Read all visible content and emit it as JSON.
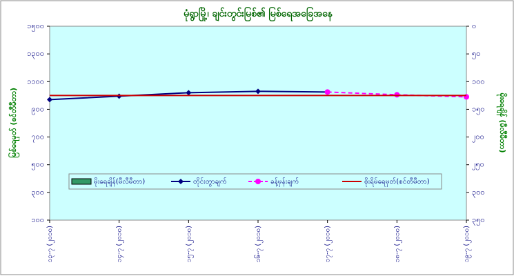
{
  "chart_data": {
    "type": "line",
    "title": "မုံရွာမြို့၊ ချင်းတွင်းမြစ်၏ မြစ်ရေအခြေအနေ",
    "y_label": "မြစ်ရေမှတ် (စင်တီမီတာ)",
    "y2_label": "မိုးရေချိန် (မီလီမီတာ)",
    "categories": [
      "၁၃-၇ (၂၀၁၀)",
      "၁၄-၇ (၂၀၁၀)",
      "၁၅-၇ (၂၀၁၀)",
      "၁၆-၇ (၂၀၁၀)",
      "၁၇-၇ (၂၀၁၀)",
      "၁၈-၇ (၂၀၁၀)",
      "၁၉-၇ (၂၀၁၀)"
    ],
    "series": [
      {
        "name": "မိုးရေချိန်(မီလီမီတာ)",
        "color": "#339966",
        "axis": "y2",
        "kind": "bar",
        "values": [
          null,
          null,
          null,
          null,
          null,
          null,
          null
        ]
      },
      {
        "name": "တိုင်းတွာချက်",
        "color": "#000080",
        "kind": "line",
        "marker": "diamond",
        "values": [
          970,
          995,
          1020,
          1030,
          1025,
          null,
          null
        ]
      },
      {
        "name": "ခန့်မှန်းချက်",
        "color": "#ff00ff",
        "kind": "line",
        "marker": "circle",
        "dashed": true,
        "values": [
          null,
          null,
          null,
          null,
          1025,
          1005,
          990
        ]
      },
      {
        "name": "စိုးရိမ်ရေမှတ်(စင်တီမီတာ)",
        "color": "#cc0000",
        "kind": "line",
        "values": [
          1000,
          1000,
          1000,
          1000,
          1000,
          1000,
          1000
        ]
      }
    ],
    "ylim": [
      100,
      1500
    ],
    "yticks": [
      {
        "value": 100,
        "label": "၁၀၀"
      },
      {
        "value": 300,
        "label": "၃၀၀"
      },
      {
        "value": 500,
        "label": "၅၀၀"
      },
      {
        "value": 700,
        "label": "၇၀၀"
      },
      {
        "value": 900,
        "label": "၉၀၀"
      },
      {
        "value": 1100,
        "label": "၁၁၀၀"
      },
      {
        "value": 1300,
        "label": "၁၃၀၀"
      },
      {
        "value": 1500,
        "label": "၁၅၀၀"
      }
    ],
    "y2lim": [
      350,
      0
    ],
    "y2ticks": [
      {
        "value": 0,
        "label": "၀"
      },
      {
        "value": 50,
        "label": "၅၀"
      },
      {
        "value": 100,
        "label": "၁၀၀"
      },
      {
        "value": 150,
        "label": "၁၅၀"
      },
      {
        "value": 200,
        "label": "၂၀၀"
      },
      {
        "value": 250,
        "label": "၂၅၀"
      },
      {
        "value": 300,
        "label": "၃၀၀"
      },
      {
        "value": 350,
        "label": "၃၅၀"
      }
    ],
    "plot_background": "#ccffff"
  }
}
